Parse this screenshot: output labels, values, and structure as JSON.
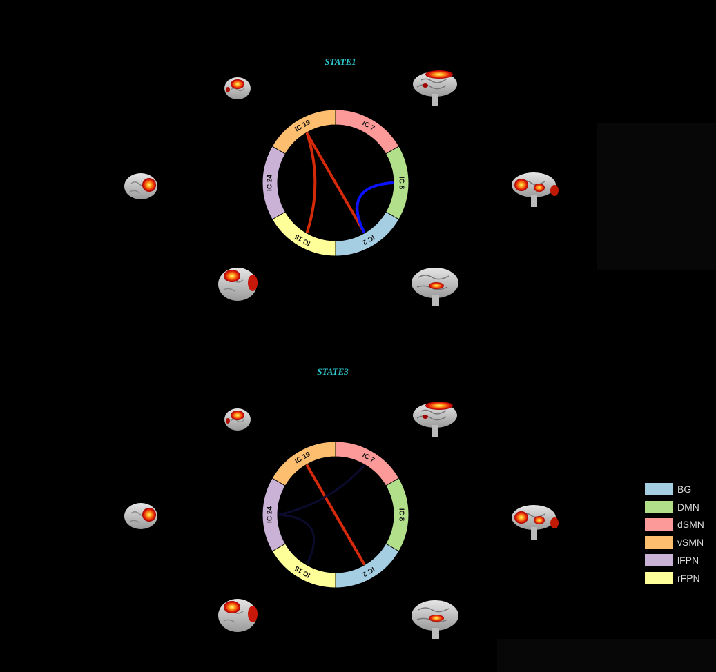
{
  "networks": [
    {
      "name": "BG",
      "color": "#a6cee3"
    },
    {
      "name": "DMN",
      "color": "#b2df8a"
    },
    {
      "name": "dSMN",
      "color": "#fb9a99"
    },
    {
      "name": "vSMN",
      "color": "#fdbf6f"
    },
    {
      "name": "lFPN",
      "color": "#cab2d6"
    },
    {
      "name": "rFPN",
      "color": "#ffff99"
    }
  ],
  "states": [
    {
      "title": "STATE1",
      "components": [
        {
          "label": "IC 7",
          "network": "dSMN"
        },
        {
          "label": "IC 8",
          "network": "DMN"
        },
        {
          "label": "IC 2",
          "network": "BG"
        },
        {
          "label": "IC 15",
          "network": "rFPN"
        },
        {
          "label": "IC 24",
          "network": "lFPN"
        },
        {
          "label": "IC 19",
          "network": "vSMN"
        }
      ],
      "connections": [
        {
          "from": "IC 19",
          "to": "IC 2",
          "sign": "positive"
        },
        {
          "from": "IC 19",
          "to": "IC 15",
          "sign": "positive"
        },
        {
          "from": "IC 2",
          "to": "IC 8",
          "sign": "negative"
        }
      ]
    },
    {
      "title": "STATE3",
      "components": [
        {
          "label": "IC 7",
          "network": "dSMN"
        },
        {
          "label": "IC 8",
          "network": "DMN"
        },
        {
          "label": "IC 2",
          "network": "BG"
        },
        {
          "label": "IC 15",
          "network": "rFPN"
        },
        {
          "label": "IC 24",
          "network": "lFPN"
        },
        {
          "label": "IC 19",
          "network": "vSMN"
        }
      ],
      "connections": [
        {
          "from": "IC 19",
          "to": "IC 2",
          "sign": "positive"
        },
        {
          "from": "IC 24",
          "to": "IC 7",
          "sign": "faint"
        },
        {
          "from": "IC 15",
          "to": "IC 24",
          "sign": "faint"
        }
      ]
    }
  ],
  "colors": {
    "positive": "#d42a0a",
    "negative": "#0a12ff",
    "faint": "#0b0b2e",
    "title": "#2ec7cf"
  }
}
